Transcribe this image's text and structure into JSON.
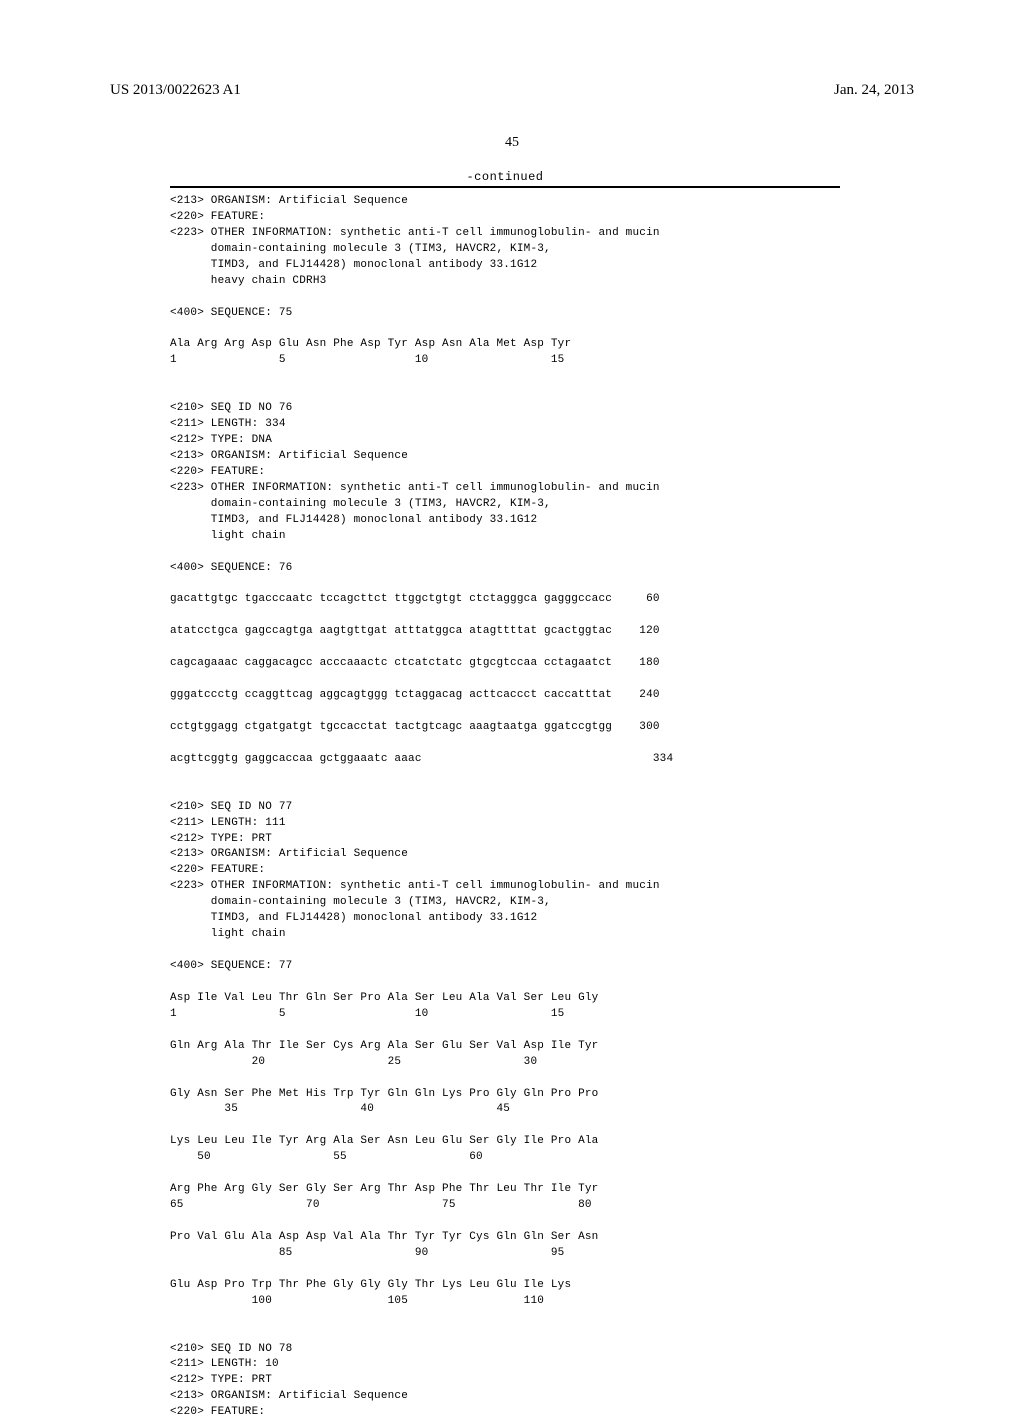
{
  "header": {
    "pub_number": "US 2013/0022623 A1",
    "pub_date": "Jan. 24, 2013",
    "page_number": "45",
    "continued_label": "-continued"
  },
  "block1": {
    "l1": "<213> ORGANISM: Artificial Sequence",
    "l2": "<220> FEATURE:",
    "l3": "<223> OTHER INFORMATION: synthetic anti-T cell immunoglobulin- and mucin",
    "l4": "      domain-containing molecule 3 (TIM3, HAVCR2, KIM-3,",
    "l5": "      TIMD3, and FLJ14428) monoclonal antibody 33.1G12",
    "l6": "      heavy chain CDRH3",
    "seq_label": "<400> SEQUENCE: 75",
    "aa1": "Ala Arg Arg Asp Glu Asn Phe Asp Tyr Asp Asn Ala Met Asp Tyr",
    "nm1": "1               5                   10                  15"
  },
  "block2": {
    "h1": "<210> SEQ ID NO 76",
    "h2": "<211> LENGTH: 334",
    "h3": "<212> TYPE: DNA",
    "h4": "<213> ORGANISM: Artificial Sequence",
    "h5": "<220> FEATURE:",
    "h6": "<223> OTHER INFORMATION: synthetic anti-T cell immunoglobulin- and mucin",
    "h7": "      domain-containing molecule 3 (TIM3, HAVCR2, KIM-3,",
    "h8": "      TIMD3, and FLJ14428) monoclonal antibody 33.1G12",
    "h9": "      light chain",
    "seq_label": "<400> SEQUENCE: 76",
    "d1": "gacattgtgc tgacccaatc tccagcttct ttggctgtgt ctctagggca gagggccacc     60",
    "d2": "atatcctgca gagccagtga aagtgttgat atttatggca atagttttat gcactggtac    120",
    "d3": "cagcagaaac caggacagcc acccaaactc ctcatctatc gtgcgtccaa cctagaatct    180",
    "d4": "gggatccctg ccaggttcag aggcagtggg tctaggacag acttcaccct caccatttat    240",
    "d5": "cctgtggagg ctgatgatgt tgccacctat tactgtcagc aaagtaatga ggatccgtgg    300",
    "d6": "acgttcggtg gaggcaccaa gctggaaatc aaac                                  334"
  },
  "block3": {
    "h1": "<210> SEQ ID NO 77",
    "h2": "<211> LENGTH: 111",
    "h3": "<212> TYPE: PRT",
    "h4": "<213> ORGANISM: Artificial Sequence",
    "h5": "<220> FEATURE:",
    "h6": "<223> OTHER INFORMATION: synthetic anti-T cell immunoglobulin- and mucin",
    "h7": "      domain-containing molecule 3 (TIM3, HAVCR2, KIM-3,",
    "h8": "      TIMD3, and FLJ14428) monoclonal antibody 33.1G12",
    "h9": "      light chain",
    "seq_label": "<400> SEQUENCE: 77",
    "aa1": "Asp Ile Val Leu Thr Gln Ser Pro Ala Ser Leu Ala Val Ser Leu Gly",
    "nm1": "1               5                   10                  15",
    "aa2": "Gln Arg Ala Thr Ile Ser Cys Arg Ala Ser Glu Ser Val Asp Ile Tyr",
    "nm2": "            20                  25                  30",
    "aa3": "Gly Asn Ser Phe Met His Trp Tyr Gln Gln Lys Pro Gly Gln Pro Pro",
    "nm3": "        35                  40                  45",
    "aa4": "Lys Leu Leu Ile Tyr Arg Ala Ser Asn Leu Glu Ser Gly Ile Pro Ala",
    "nm4": "    50                  55                  60",
    "aa5": "Arg Phe Arg Gly Ser Gly Ser Arg Thr Asp Phe Thr Leu Thr Ile Tyr",
    "nm5": "65                  70                  75                  80",
    "aa6": "Pro Val Glu Ala Asp Asp Val Ala Thr Tyr Tyr Cys Gln Gln Ser Asn",
    "nm6": "                85                  90                  95",
    "aa7": "Glu Asp Pro Trp Thr Phe Gly Gly Gly Thr Lys Leu Glu Ile Lys",
    "nm7": "            100                 105                 110"
  },
  "block4": {
    "h1": "<210> SEQ ID NO 78",
    "h2": "<211> LENGTH: 10",
    "h3": "<212> TYPE: PRT",
    "h4": "<213> ORGANISM: Artificial Sequence",
    "h5": "<220> FEATURE:"
  }
}
